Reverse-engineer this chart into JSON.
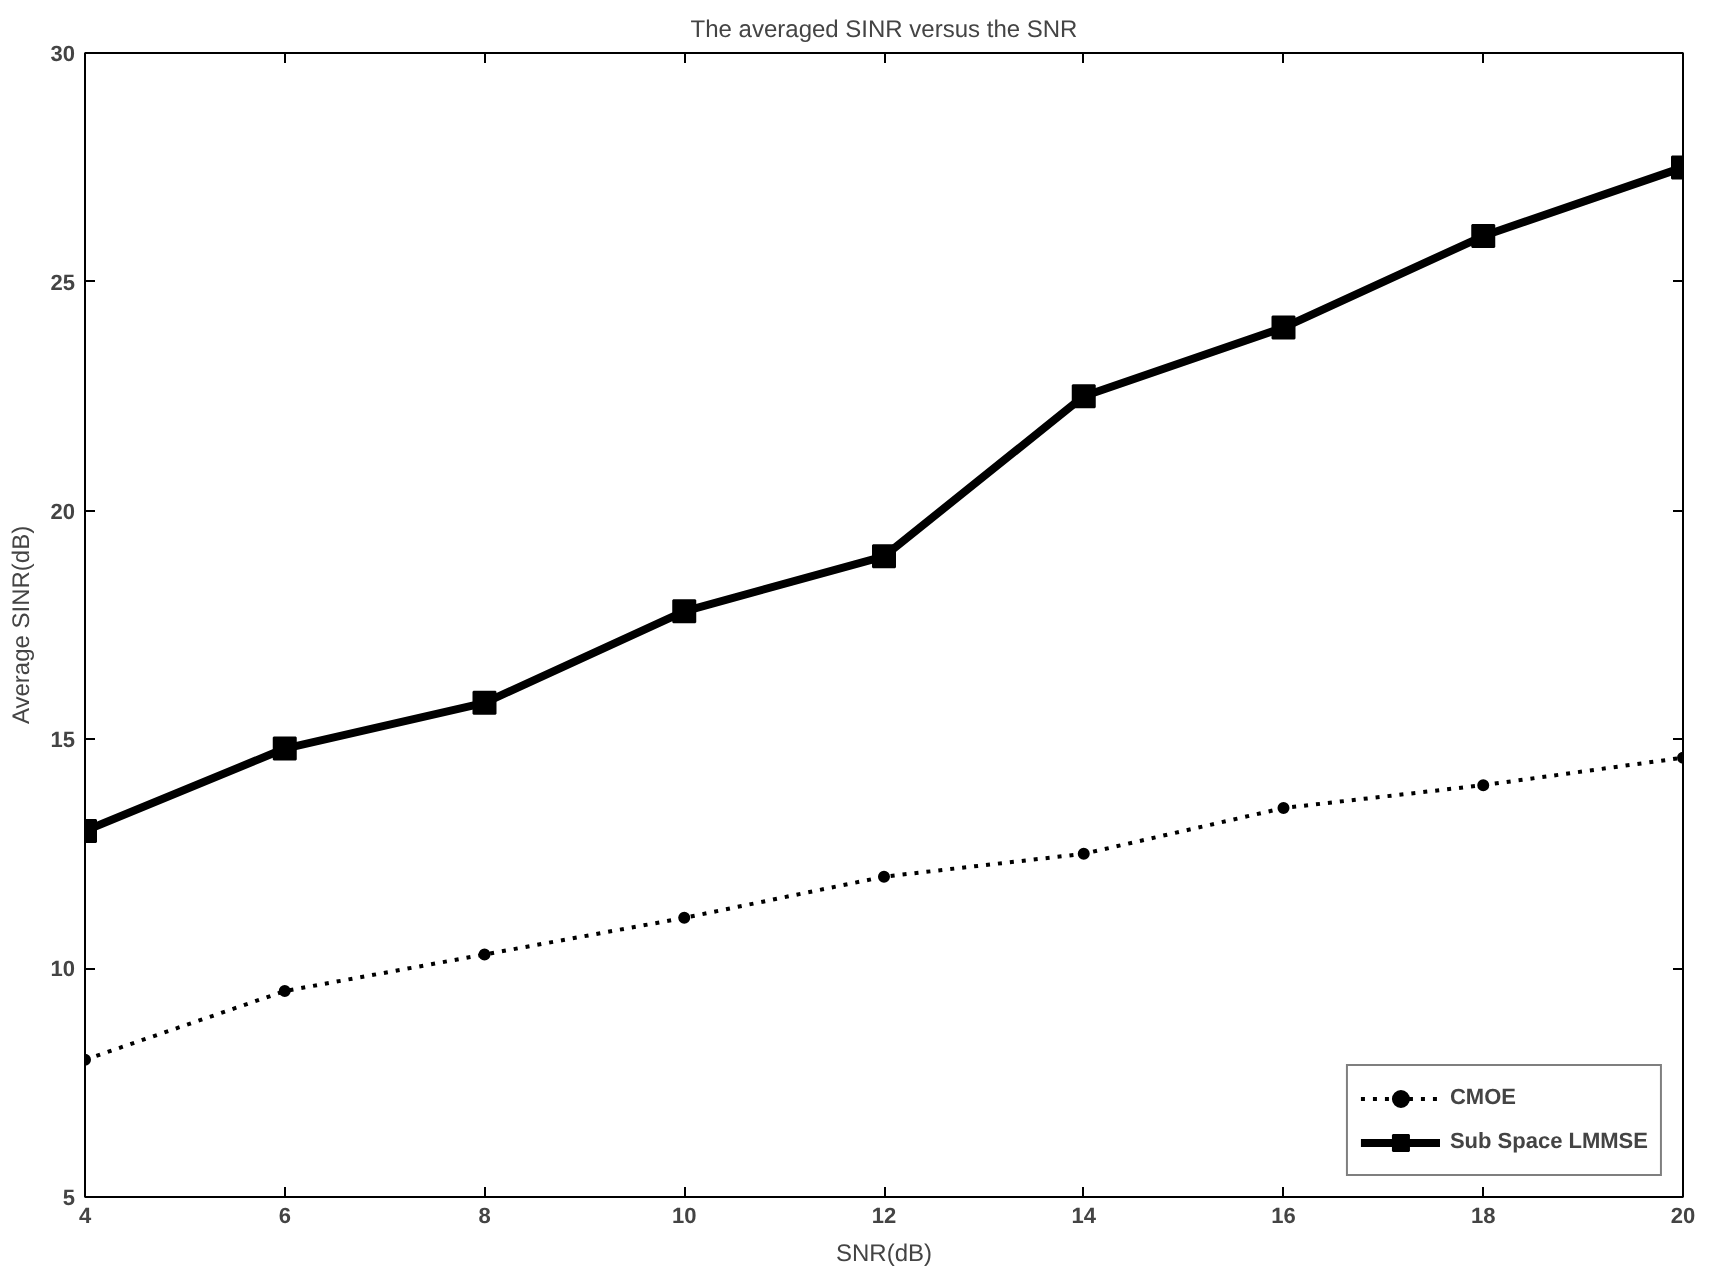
{
  "chart_data": {
    "type": "line",
    "title": "The averaged SINR versus the SNR",
    "xlabel": "SNR(dB)",
    "ylabel": "Average SINR(dB)",
    "x": [
      4,
      6,
      8,
      10,
      12,
      14,
      16,
      18,
      20
    ],
    "series": [
      {
        "name": "CMOE",
        "color": "#000000",
        "marker": "circle",
        "line_style": "dotted",
        "values": [
          8.0,
          9.5,
          10.3,
          11.1,
          12.0,
          12.5,
          13.5,
          14.0,
          14.6
        ]
      },
      {
        "name": "Sub Space LMMSE",
        "color": "#000000",
        "marker": "square",
        "line_style": "solid",
        "values": [
          13.0,
          14.8,
          15.8,
          17.8,
          19.0,
          22.5,
          24.0,
          26.0,
          27.5
        ]
      }
    ],
    "xlim": [
      4,
      20
    ],
    "xticks": [
      4,
      6,
      8,
      10,
      12,
      14,
      16,
      18,
      20
    ],
    "ylim": [
      5,
      30
    ],
    "yticks": [
      5,
      10,
      15,
      20,
      25,
      30
    ],
    "grid": false,
    "legend": "bottom right"
  }
}
